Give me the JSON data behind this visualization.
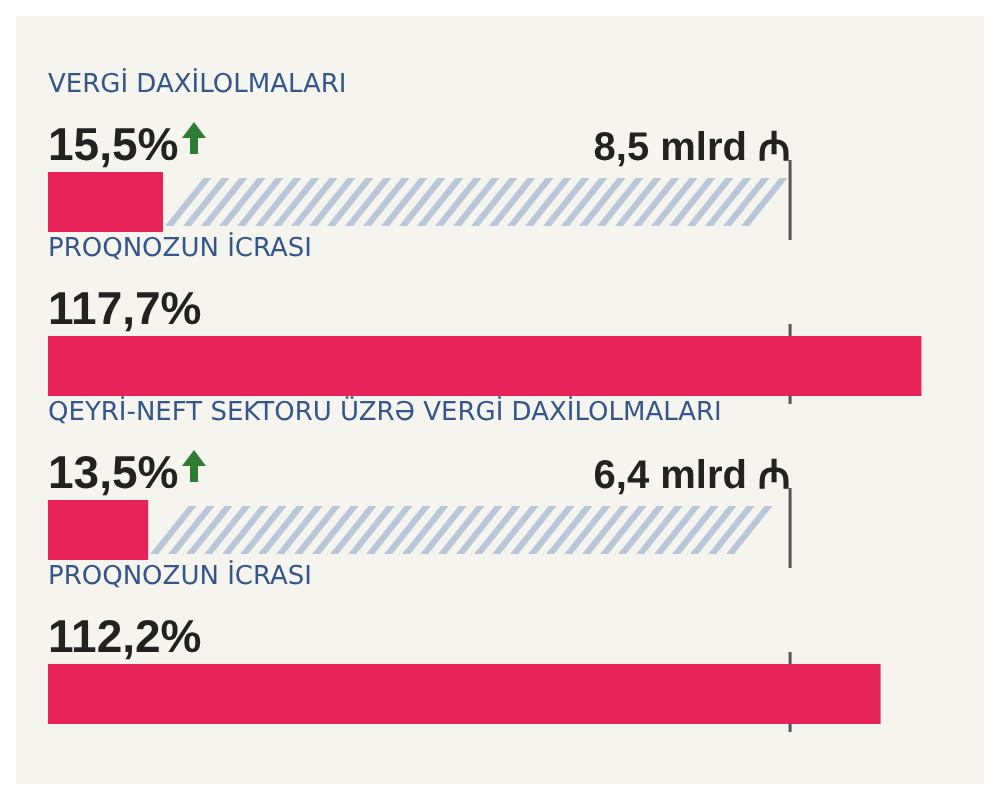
{
  "chart_data": {
    "type": "bar",
    "orientation": "horizontal",
    "categories": [
      "VERGİ DAXİLOLMALARI",
      "PROQNOZUN İCRASI",
      "QEYRİ-NEFT SEKTORU ÜZRƏ VERGİ DAXİLOLMALARI",
      "PROQNOZUN İCRASI"
    ],
    "values": [
      15.5,
      117.7,
      13.5,
      112.2
    ],
    "value_labels": [
      "15,5%",
      "117,7%",
      "13,5%",
      "112,2%"
    ],
    "color": "#e8235a",
    "tick_labels": false,
    "ref_lines": [
      {
        "axis": "x",
        "value": 100
      }
    ],
    "annotations": [
      "8,5 mlrd ₼",
      "6,4 mlrd ₼"
    ]
  }
}
